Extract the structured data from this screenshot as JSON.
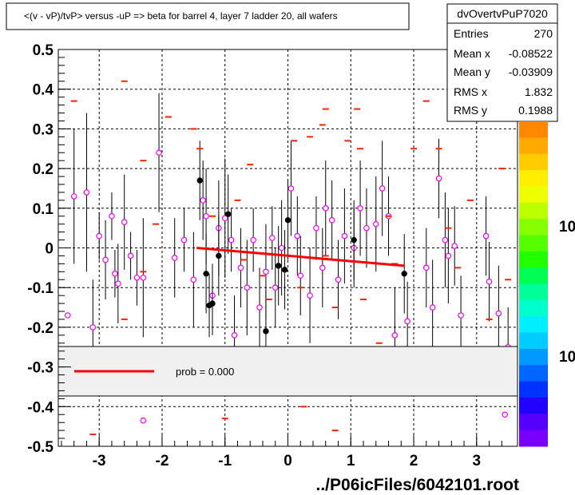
{
  "chart_data": {
    "type": "scatter",
    "title": "<(v - vP)/tvP> versus  -uP => beta for barrel 4, layer 7 ladder 20, all wafers",
    "xlabel": "",
    "ylabel": "",
    "xlim": [
      -3.65,
      3.65
    ],
    "ylim": [
      -0.5,
      0.5
    ],
    "x_ticks": [
      "-3",
      "-2",
      "-1",
      "0",
      "1",
      "2",
      "3"
    ],
    "y_ticks": [
      "-0.5",
      "-0.4",
      "-0.3",
      "-0.2",
      "-0.1",
      "0",
      "0.1",
      "0.2",
      "0.3",
      "0.4",
      "0.5"
    ],
    "grid": true,
    "stats": {
      "name": "dvOvertvPuP7020",
      "rows": [
        {
          "label": "Entries",
          "value": "270"
        },
        {
          "label": "Mean x",
          "value": "-0.08522"
        },
        {
          "label": "Mean y",
          "value": "-0.03909"
        },
        {
          "label": "RMS x",
          "value": "1.832"
        },
        {
          "label": "RMS y",
          "value": "0.1988"
        }
      ]
    },
    "palette_labels": [
      "10",
      "10"
    ],
    "legend": {
      "text": "prob = 0.000",
      "color": "#ff0000"
    },
    "fit_line": {
      "x": [
        -1.45,
        1.85
      ],
      "y": [
        0.0,
        -0.045
      ],
      "color": "#ff0000"
    },
    "series": [
      {
        "marker": "open-circle-magenta",
        "points": [
          {
            "x": -3.4,
            "y": 0.13,
            "e": 0.17
          },
          {
            "x": -3.2,
            "y": 0.14,
            "e": 0.2
          },
          {
            "x": -3.1,
            "y": -0.2,
            "e": 0.12
          },
          {
            "x": -3.0,
            "y": 0.03,
            "e": 0.06
          },
          {
            "x": -2.9,
            "y": -0.03,
            "e": 0.1
          },
          {
            "x": -2.8,
            "y": 0.08,
            "e": 0.06
          },
          {
            "x": -2.75,
            "y": -0.065,
            "e": 0.06
          },
          {
            "x": -2.7,
            "y": -0.09,
            "e": 0.1
          },
          {
            "x": -2.6,
            "y": 0.065,
            "e": 0.12
          },
          {
            "x": -2.5,
            "y": -0.02,
            "e": 0.06
          },
          {
            "x": -2.4,
            "y": -0.075,
            "e": 0.07
          },
          {
            "x": -2.3,
            "y": -0.075,
            "e": 0.15
          },
          {
            "x": -2.05,
            "y": 0.24,
            "e": 0.15
          },
          {
            "x": -1.8,
            "y": -0.025,
            "e": 0.1
          },
          {
            "x": -1.65,
            "y": 0.02,
            "e": 0.08
          },
          {
            "x": -1.5,
            "y": -0.08,
            "e": 0.12
          },
          {
            "x": -1.35,
            "y": 0.12,
            "e": 0.1
          },
          {
            "x": -1.3,
            "y": 0.08,
            "e": 0.12
          },
          {
            "x": -1.2,
            "y": -0.12,
            "e": 0.08
          },
          {
            "x": -1.1,
            "y": 0.05,
            "e": 0.12
          },
          {
            "x": -1.0,
            "y": 0.075,
            "e": 0.15
          },
          {
            "x": -0.9,
            "y": 0.02,
            "e": 0.08
          },
          {
            "x": -0.85,
            "y": -0.22,
            "e": 0.1
          },
          {
            "x": -0.75,
            "y": -0.05,
            "e": 0.1
          },
          {
            "x": -0.65,
            "y": -0.1,
            "e": 0.12
          },
          {
            "x": -0.55,
            "y": 0.02,
            "e": 0.08
          },
          {
            "x": -0.45,
            "y": -0.15,
            "e": 0.1
          },
          {
            "x": -0.35,
            "y": -0.06,
            "e": 0.12
          },
          {
            "x": -0.25,
            "y": 0.025,
            "e": 0.08
          },
          {
            "x": -0.2,
            "y": -0.1,
            "e": 0.1
          },
          {
            "x": -0.1,
            "y": 0.0,
            "e": 0.12
          },
          {
            "x": 0.05,
            "y": 0.15,
            "e": 0.12
          },
          {
            "x": 0.15,
            "y": 0.03,
            "e": 0.1
          },
          {
            "x": 0.2,
            "y": -0.07,
            "e": 0.1
          },
          {
            "x": 0.35,
            "y": -0.12,
            "e": 0.12
          },
          {
            "x": 0.45,
            "y": 0.05,
            "e": 0.08
          },
          {
            "x": 0.55,
            "y": -0.05,
            "e": 0.1
          },
          {
            "x": 0.6,
            "y": 0.1,
            "e": 0.12
          },
          {
            "x": 0.7,
            "y": 0.07,
            "e": 0.1
          },
          {
            "x": 0.8,
            "y": -0.08,
            "e": 0.1
          },
          {
            "x": 0.9,
            "y": 0.03,
            "e": 0.12
          },
          {
            "x": 1.05,
            "y": 0.0,
            "e": 0.1
          },
          {
            "x": 1.15,
            "y": 0.1,
            "e": 0.12
          },
          {
            "x": 1.25,
            "y": 0.05,
            "e": 0.1
          },
          {
            "x": 1.4,
            "y": 0.06,
            "e": 0.12
          },
          {
            "x": 1.5,
            "y": 0.15,
            "e": 0.12
          },
          {
            "x": 1.6,
            "y": 0.08,
            "e": 0.1
          },
          {
            "x": 1.7,
            "y": -0.22,
            "e": 0.12
          },
          {
            "x": 1.9,
            "y": -0.185,
            "e": 0.1
          },
          {
            "x": 2.2,
            "y": -0.05,
            "e": 0.1
          },
          {
            "x": 2.3,
            "y": -0.15,
            "e": 0.12
          },
          {
            "x": 2.4,
            "y": 0.175,
            "e": 0.1
          },
          {
            "x": 2.5,
            "y": 0.02,
            "e": 0.12
          },
          {
            "x": 2.55,
            "y": -0.02,
            "e": 0.12
          },
          {
            "x": 2.65,
            "y": 0.005,
            "e": 0.1
          },
          {
            "x": 2.75,
            "y": -0.17,
            "e": 0.1
          },
          {
            "x": 3.15,
            "y": 0.03,
            "e": 0.1
          },
          {
            "x": 3.2,
            "y": -0.085,
            "e": 0.1
          },
          {
            "x": 3.35,
            "y": -0.165,
            "e": 0.12
          },
          {
            "x": 3.5,
            "y": -0.25,
            "e": 0.1
          },
          {
            "x": -3.5,
            "y": -0.17,
            "e": 0.0
          },
          {
            "x": -2.3,
            "y": -0.435,
            "e": 0.0
          },
          {
            "x": 3.45,
            "y": -0.42,
            "e": 0.0
          }
        ]
      },
      {
        "marker": "filled-circle-black",
        "points": [
          {
            "x": -1.4,
            "y": 0.17,
            "e": 0.1
          },
          {
            "x": -1.3,
            "y": -0.065,
            "e": 0.1
          },
          {
            "x": -1.25,
            "y": -0.145,
            "e": 0.08
          },
          {
            "x": -1.2,
            "y": -0.14,
            "e": 0.08
          },
          {
            "x": -1.1,
            "y": -0.02,
            "e": 0.1
          },
          {
            "x": -0.95,
            "y": 0.085,
            "e": 0.1
          },
          {
            "x": -0.35,
            "y": -0.21,
            "e": 0.1
          },
          {
            "x": -0.15,
            "y": -0.045,
            "e": 0.1
          },
          {
            "x": -0.05,
            "y": -0.055,
            "e": 0.1
          },
          {
            "x": 0.0,
            "y": 0.07,
            "e": 0.1
          },
          {
            "x": 1.05,
            "y": 0.02,
            "e": 0.1
          },
          {
            "x": 1.85,
            "y": -0.065,
            "e": 0.1
          }
        ]
      },
      {
        "marker": "dash-red",
        "points": [
          {
            "x": -3.4,
            "y": 0.37
          },
          {
            "x": -3.1,
            "y": -0.47
          },
          {
            "x": -2.6,
            "y": 0.42
          },
          {
            "x": -2.3,
            "y": -0.06
          },
          {
            "x": -2.1,
            "y": 0.06
          },
          {
            "x": -1.9,
            "y": 0.33
          },
          {
            "x": -1.5,
            "y": 0.3
          },
          {
            "x": -1.4,
            "y": 0.25
          },
          {
            "x": -1.2,
            "y": 0.08
          },
          {
            "x": -0.8,
            "y": 0.12
          },
          {
            "x": -0.7,
            "y": -0.03
          },
          {
            "x": -0.6,
            "y": 0.21
          },
          {
            "x": -0.4,
            "y": -0.07
          },
          {
            "x": -0.3,
            "y": -0.13
          },
          {
            "x": 0.1,
            "y": 0.27
          },
          {
            "x": 0.2,
            "y": -0.1
          },
          {
            "x": 0.35,
            "y": 0.28
          },
          {
            "x": 0.55,
            "y": 0.31
          },
          {
            "x": 0.6,
            "y": -0.02
          },
          {
            "x": 0.75,
            "y": -0.15
          },
          {
            "x": 0.6,
            "y": 0.35
          },
          {
            "x": 0.95,
            "y": 0.27
          },
          {
            "x": 1.1,
            "y": 0.35
          },
          {
            "x": 1.15,
            "y": 0.25
          },
          {
            "x": 1.2,
            "y": -0.13
          },
          {
            "x": 1.45,
            "y": -0.24
          },
          {
            "x": 1.6,
            "y": 0.08
          },
          {
            "x": 1.7,
            "y": -0.04
          },
          {
            "x": 2.0,
            "y": 0.25
          },
          {
            "x": 2.2,
            "y": 0.37
          },
          {
            "x": 2.4,
            "y": 0.25
          },
          {
            "x": 2.55,
            "y": 0.05
          },
          {
            "x": 2.7,
            "y": -0.05
          },
          {
            "x": 2.9,
            "y": 0.12
          },
          {
            "x": 3.0,
            "y": 0.32
          },
          {
            "x": 3.2,
            "y": -0.18
          },
          {
            "x": 3.4,
            "y": 0.2
          },
          {
            "x": 3.5,
            "y": -0.08
          },
          {
            "x": -2.6,
            "y": -0.18
          },
          {
            "x": -2.3,
            "y": 0.22
          },
          {
            "x": -1.0,
            "y": -0.43
          },
          {
            "x": -0.45,
            "y": -0.37
          },
          {
            "x": 0.25,
            "y": -0.4
          },
          {
            "x": 0.75,
            "y": -0.46
          }
        ]
      }
    ]
  },
  "footer": "../P06icFiles/6042101.root"
}
